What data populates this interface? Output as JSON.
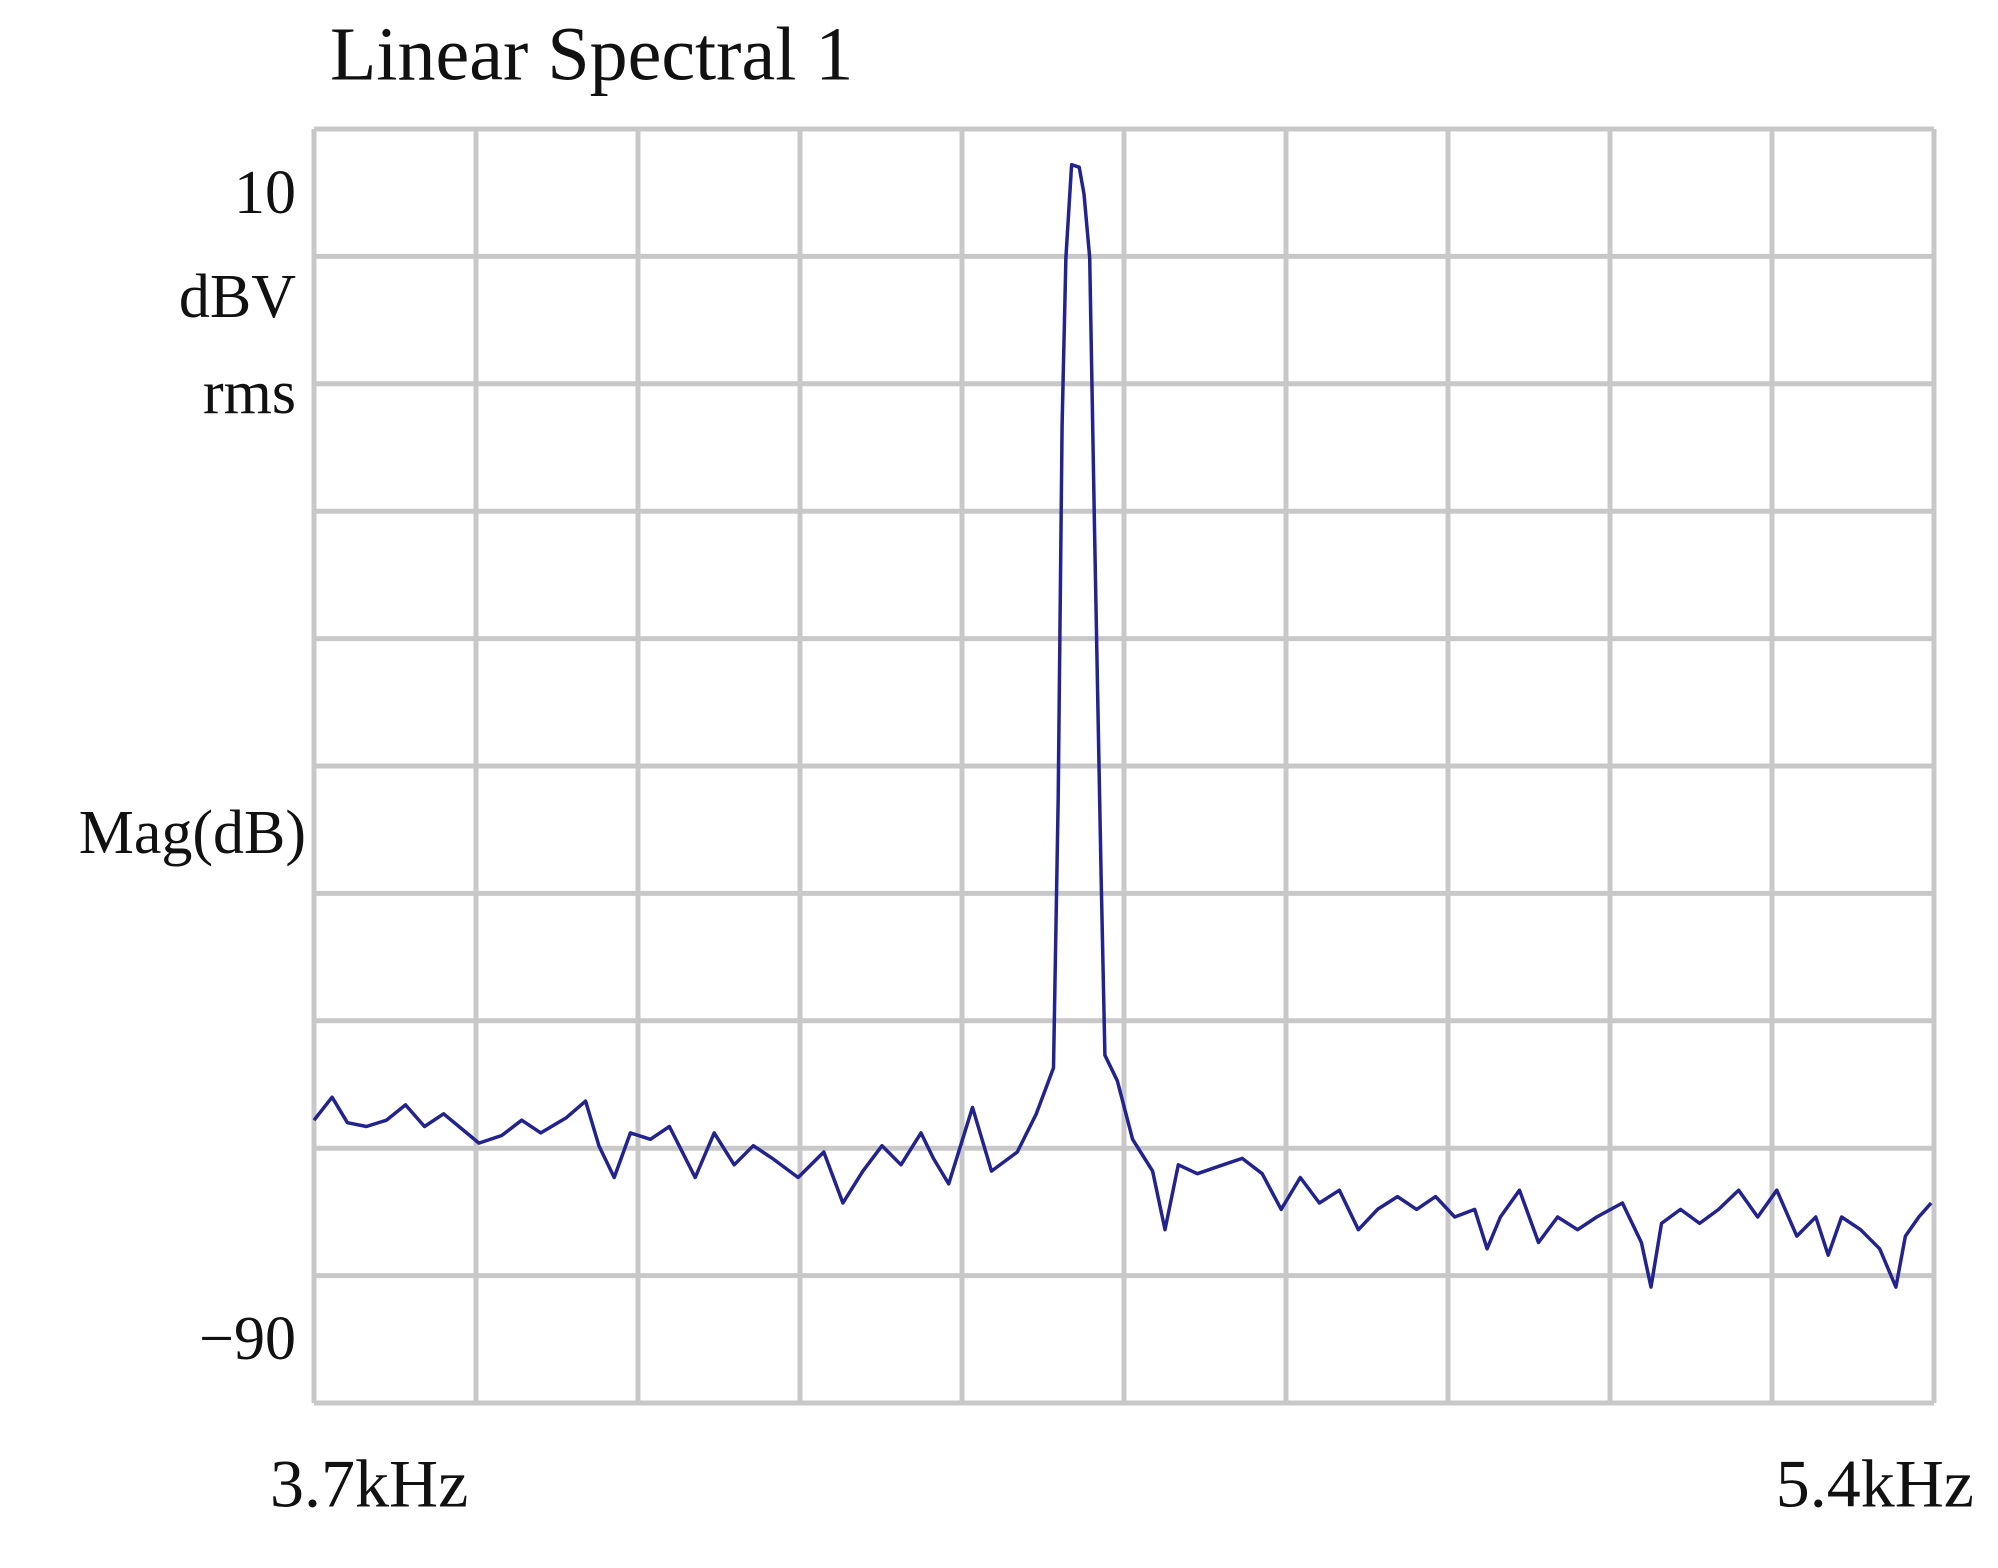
{
  "chart_data": {
    "type": "line",
    "title": "Linear Spectral 1",
    "annotations": [
      "dBV",
      "rms",
      "Mag(dB)"
    ],
    "xlim": [
      3.7,
      5.4
    ],
    "ylim": [
      -90,
      10
    ],
    "xticks": [
      {
        "value": 3.7,
        "label": "3.7kHz"
      },
      {
        "value": 5.4,
        "label": "5.4kHz"
      }
    ],
    "yticks": [
      {
        "value": 10,
        "label": "10"
      },
      {
        "value": -90,
        "label": "−90"
      }
    ],
    "xgrid": [
      3.7,
      3.87,
      4.04,
      4.21,
      4.38,
      4.55,
      4.72,
      4.89,
      5.06,
      5.23,
      5.4
    ],
    "ygrid": [
      -90,
      -80,
      -70,
      -60,
      -50,
      -40,
      -30,
      -20,
      -10,
      0,
      10
    ],
    "grid": true,
    "series": [
      {
        "color": "#23238e",
        "x": [
          3.7,
          3.719,
          3.735,
          3.755,
          3.776,
          3.796,
          3.816,
          3.836,
          3.857,
          3.873,
          3.897,
          3.918,
          3.938,
          3.965,
          3.985,
          3.999,
          4.015,
          4.032,
          4.053,
          4.073,
          4.1,
          4.12,
          4.141,
          4.161,
          4.181,
          4.208,
          4.235,
          4.255,
          4.276,
          4.296,
          4.316,
          4.337,
          4.35,
          4.366,
          4.391,
          4.411,
          4.438,
          4.458,
          4.476,
          4.481,
          4.485,
          4.489,
          4.495,
          4.503,
          4.508,
          4.514,
          4.519,
          4.526,
          4.53,
          4.543,
          4.559,
          4.58,
          4.593,
          4.607,
          4.627,
          4.654,
          4.674,
          4.695,
          4.715,
          4.735,
          4.755,
          4.776,
          4.796,
          4.816,
          4.837,
          4.857,
          4.877,
          4.897,
          4.918,
          4.931,
          4.945,
          4.965,
          4.985,
          5.005,
          5.026,
          5.046,
          5.073,
          5.093,
          5.103,
          5.114,
          5.134,
          5.154,
          5.174,
          5.195,
          5.215,
          5.235,
          5.256,
          5.276,
          5.289,
          5.303,
          5.323,
          5.343,
          5.36,
          5.37,
          5.384,
          5.397
        ],
        "values": [
          -67.8,
          -66.0,
          -68.0,
          -68.3,
          -67.8,
          -66.6,
          -68.3,
          -67.3,
          -68.6,
          -69.6,
          -69.0,
          -67.8,
          -68.8,
          -67.6,
          -66.3,
          -69.8,
          -72.3,
          -68.8,
          -69.3,
          -68.3,
          -72.3,
          -68.8,
          -71.3,
          -69.8,
          -70.8,
          -72.3,
          -70.3,
          -74.3,
          -71.8,
          -69.8,
          -71.3,
          -68.8,
          -70.8,
          -72.8,
          -66.8,
          -71.8,
          -70.3,
          -67.3,
          -63.7,
          -42.5,
          -13.2,
          -0.1,
          7.2,
          7.0,
          4.9,
          -0.1,
          -21.3,
          -48.6,
          -62.7,
          -64.7,
          -69.3,
          -71.8,
          -76.4,
          -71.3,
          -72.0,
          -71.3,
          -70.8,
          -72.0,
          -74.8,
          -72.3,
          -74.3,
          -73.3,
          -76.4,
          -74.8,
          -73.8,
          -74.8,
          -73.8,
          -75.4,
          -74.8,
          -77.9,
          -75.4,
          -73.3,
          -77.4,
          -75.4,
          -76.4,
          -75.4,
          -74.3,
          -77.4,
          -80.9,
          -75.9,
          -74.8,
          -75.9,
          -74.8,
          -73.3,
          -75.4,
          -73.3,
          -76.9,
          -75.4,
          -78.4,
          -75.4,
          -76.4,
          -77.9,
          -80.9,
          -76.9,
          -75.4,
          -74.3
        ]
      }
    ]
  }
}
